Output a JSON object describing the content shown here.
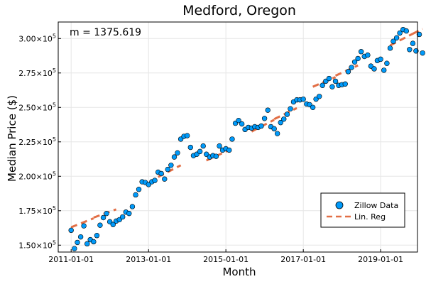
{
  "chart_data": {
    "type": "scatter",
    "title": "Medford, Oregon",
    "xlabel": "Month",
    "ylabel": "Median Price ($)",
    "annotation": "m = 1375.619",
    "x_ticks": [
      "2011-01-01",
      "2013-01-01",
      "2015-01-01",
      "2017-01-01",
      "2019-01-01"
    ],
    "y_ticks": [
      {
        "value": 150000,
        "mantissa": "1.50",
        "exp": "5"
      },
      {
        "value": 175000,
        "mantissa": "1.75",
        "exp": "5"
      },
      {
        "value": 200000,
        "mantissa": "2.00",
        "exp": "5"
      },
      {
        "value": 225000,
        "mantissa": "2.25",
        "exp": "5"
      },
      {
        "value": 250000,
        "mantissa": "2.50",
        "exp": "5"
      },
      {
        "value": 275000,
        "mantissa": "2.75",
        "exp": "5"
      },
      {
        "value": 300000,
        "mantissa": "3.00",
        "exp": "5"
      }
    ],
    "x_range": [
      "2010-09-01",
      "2019-12-15"
    ],
    "ylim": [
      145000,
      312000
    ],
    "grid": true,
    "legend_position": "bottom-right",
    "series": [
      {
        "name": "Zillow Data",
        "kind": "scatter",
        "color": "#009AFA",
        "points": [
          [
            "2011-01-01",
            160800
          ],
          [
            "2011-02-01",
            147500
          ],
          [
            "2011-03-01",
            152000
          ],
          [
            "2011-04-01",
            156000
          ],
          [
            "2011-05-01",
            164000
          ],
          [
            "2011-06-01",
            151000
          ],
          [
            "2011-07-01",
            154000
          ],
          [
            "2011-08-01",
            152500
          ],
          [
            "2011-09-01",
            157000
          ],
          [
            "2011-10-01",
            164500
          ],
          [
            "2011-11-01",
            170000
          ],
          [
            "2011-12-01",
            173000
          ],
          [
            "2012-01-01",
            167000
          ],
          [
            "2012-02-01",
            165000
          ],
          [
            "2012-03-01",
            167500
          ],
          [
            "2012-04-01",
            168500
          ],
          [
            "2012-05-01",
            170500
          ],
          [
            "2012-06-01",
            174000
          ],
          [
            "2012-07-01",
            173000
          ],
          [
            "2012-08-01",
            178000
          ],
          [
            "2012-09-01",
            186500
          ],
          [
            "2012-10-01",
            190500
          ],
          [
            "2012-11-01",
            196000
          ],
          [
            "2012-12-01",
            195500
          ],
          [
            "2013-01-01",
            194000
          ],
          [
            "2013-02-01",
            196000
          ],
          [
            "2013-03-01",
            197000
          ],
          [
            "2013-04-01",
            203000
          ],
          [
            "2013-05-01",
            202000
          ],
          [
            "2013-06-01",
            198000
          ],
          [
            "2013-07-01",
            205000
          ],
          [
            "2013-08-01",
            208000
          ],
          [
            "2013-09-01",
            214000
          ],
          [
            "2013-10-01",
            217000
          ],
          [
            "2013-11-01",
            227000
          ],
          [
            "2013-12-01",
            229000
          ],
          [
            "2014-01-01",
            229500
          ],
          [
            "2014-02-01",
            221000
          ],
          [
            "2014-03-01",
            215000
          ],
          [
            "2014-04-01",
            216000
          ],
          [
            "2014-05-01",
            218000
          ],
          [
            "2014-06-01",
            222000
          ],
          [
            "2014-07-01",
            216000
          ],
          [
            "2014-08-01",
            214000
          ],
          [
            "2014-09-01",
            215000
          ],
          [
            "2014-10-01",
            214500
          ],
          [
            "2014-11-01",
            222000
          ],
          [
            "2014-12-01",
            219000
          ],
          [
            "2015-01-01",
            220000
          ],
          [
            "2015-02-01",
            219000
          ],
          [
            "2015-03-01",
            227000
          ],
          [
            "2015-04-01",
            238500
          ],
          [
            "2015-05-01",
            240500
          ],
          [
            "2015-06-01",
            238000
          ],
          [
            "2015-07-01",
            234000
          ],
          [
            "2015-08-01",
            235500
          ],
          [
            "2015-09-01",
            235000
          ],
          [
            "2015-10-01",
            236000
          ],
          [
            "2015-11-01",
            235500
          ],
          [
            "2015-12-01",
            236500
          ],
          [
            "2016-01-01",
            242000
          ],
          [
            "2016-02-01",
            248000
          ],
          [
            "2016-03-01",
            236000
          ],
          [
            "2016-04-01",
            234500
          ],
          [
            "2016-05-01",
            231000
          ],
          [
            "2016-06-01",
            239000
          ],
          [
            "2016-07-01",
            241500
          ],
          [
            "2016-08-01",
            245000
          ],
          [
            "2016-09-01",
            249000
          ],
          [
            "2016-10-01",
            254000
          ],
          [
            "2016-11-01",
            255500
          ],
          [
            "2016-12-01",
            255500
          ],
          [
            "2017-01-01",
            256000
          ],
          [
            "2017-02-01",
            252500
          ],
          [
            "2017-03-01",
            252000
          ],
          [
            "2017-04-01",
            250000
          ],
          [
            "2017-05-01",
            256000
          ],
          [
            "2017-06-01",
            258000
          ],
          [
            "2017-07-01",
            266000
          ],
          [
            "2017-08-01",
            269000
          ],
          [
            "2017-09-01",
            271000
          ],
          [
            "2017-10-01",
            265000
          ],
          [
            "2017-11-01",
            269000
          ],
          [
            "2017-12-01",
            266000
          ],
          [
            "2018-01-01",
            266500
          ],
          [
            "2018-02-01",
            267000
          ],
          [
            "2018-03-01",
            276000
          ],
          [
            "2018-04-01",
            279000
          ],
          [
            "2018-05-01",
            283000
          ],
          [
            "2018-06-01",
            285500
          ],
          [
            "2018-07-01",
            290500
          ],
          [
            "2018-08-01",
            287000
          ],
          [
            "2018-09-01",
            288000
          ],
          [
            "2018-10-01",
            280000
          ],
          [
            "2018-11-01",
            278000
          ],
          [
            "2018-12-01",
            284000
          ],
          [
            "2019-01-01",
            285000
          ],
          [
            "2019-02-01",
            277000
          ],
          [
            "2019-03-01",
            282000
          ],
          [
            "2019-04-01",
            293000
          ],
          [
            "2019-05-01",
            298000
          ],
          [
            "2019-06-01",
            300500
          ],
          [
            "2019-07-01",
            304000
          ],
          [
            "2019-08-01",
            306500
          ],
          [
            "2019-09-01",
            305500
          ],
          [
            "2019-10-01",
            292000
          ],
          [
            "2019-11-01",
            296500
          ],
          [
            "2019-12-01",
            291000
          ],
          [
            "2020-01-01",
            303000
          ],
          [
            "2020-02-01",
            289500
          ]
        ]
      },
      {
        "name": "Lin. Reg",
        "kind": "segments",
        "color": "#E26F46",
        "style": "dashed",
        "segments": [
          [
            [
              "2011-01-01",
              163000
            ],
            [
              "2011-08-01",
              169500
            ]
          ],
          [
            [
              "2011-08-01",
              170000
            ],
            [
              "2012-03-01",
              176000
            ]
          ],
          [
            [
              "2013-04-01",
              199500
            ],
            [
              "2013-11-01",
              208000
            ]
          ],
          [
            [
              "2014-07-01",
              211500
            ],
            [
              "2015-02-01",
              219000
            ]
          ],
          [
            [
              "2015-09-01",
              232500
            ],
            [
              "2016-04-01",
              241000
            ]
          ],
          [
            [
              "2016-04-01",
              241500
            ],
            [
              "2016-11-01",
              249500
            ]
          ],
          [
            [
              "2017-04-01",
              265000
            ],
            [
              "2017-11-01",
              272000
            ]
          ],
          [
            [
              "2017-11-01",
              273000
            ],
            [
              "2018-06-01",
              280500
            ]
          ],
          [
            [
              "2019-04-01",
              295000
            ],
            [
              "2019-11-01",
              303500
            ]
          ],
          [
            [
              "2019-11-01",
              303500
            ],
            [
              "2020-02-01",
              307000
            ]
          ]
        ]
      }
    ]
  }
}
